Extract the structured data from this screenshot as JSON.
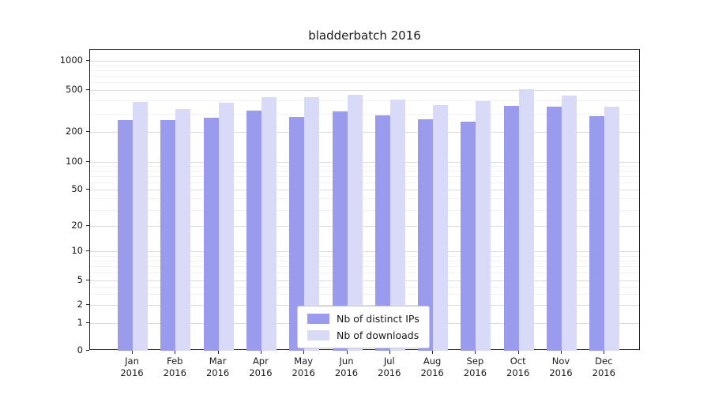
{
  "title": "bladderbatch 2016",
  "chart_data": {
    "type": "bar",
    "title": "bladderbatch 2016",
    "categories": [
      "Jan",
      "Feb",
      "Mar",
      "Apr",
      "May",
      "Jun",
      "Jul",
      "Aug",
      "Sep",
      "Oct",
      "Nov",
      "Dec"
    ],
    "year": "2016",
    "xlabel": "",
    "ylabel": "",
    "y_scale": "log",
    "y_ticks": [
      0,
      1,
      2,
      5,
      10,
      20,
      50,
      100,
      200,
      500,
      1000
    ],
    "ylim": [
      0,
      1000
    ],
    "grid": true,
    "legend_position": "bottom-center",
    "series": [
      {
        "name": "Nb of distinct IPs",
        "color": "#9b9bee",
        "values": [
          260,
          260,
          275,
          320,
          280,
          315,
          290,
          265,
          250,
          355,
          345,
          285
        ]
      },
      {
        "name": "Nb of downloads",
        "color": "#d9d9f8",
        "values": [
          385,
          330,
          380,
          425,
          430,
          450,
          405,
          360,
          390,
          510,
          440,
          350
        ]
      }
    ]
  }
}
